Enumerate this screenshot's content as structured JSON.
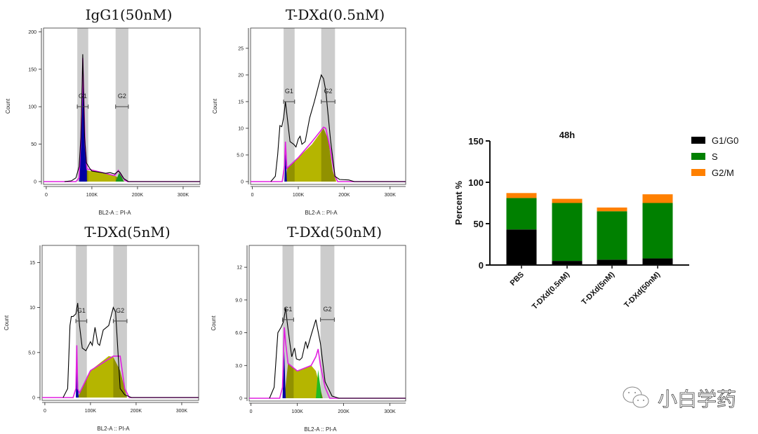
{
  "colors": {
    "black_line": "#000000",
    "fit": "#e020e0",
    "g1_fill": "#0000cc",
    "s_fill": "#b5b500",
    "g2_fill": "#22bb22",
    "gate_band": "#cccccc",
    "G1/G0": "#000000",
    "S": "#008000",
    "G2/M": "#ff8000"
  },
  "chart_data": [
    {
      "type": "histogram",
      "title": "IgG1(50nM)",
      "xlabel": "BL2-A :: PI-A",
      "ylabel": "Count",
      "xticks": [
        {
          "v": 0,
          "label": "0"
        },
        {
          "v": 100,
          "label": "100K"
        },
        {
          "v": 200,
          "label": "200K"
        },
        {
          "v": 300,
          "label": "300K"
        }
      ],
      "yticks": [
        {
          "v": 0,
          "label": "0"
        },
        {
          "v": 50,
          "label": "50"
        },
        {
          "v": 100,
          "label": "100"
        },
        {
          "v": 150,
          "label": "150"
        },
        {
          "v": 200,
          "label": "200"
        }
      ],
      "xlim": [
        -6,
        337
      ],
      "ylim": [
        0,
        205
      ],
      "gates": [
        {
          "label": "G1",
          "range": [
            68,
            92
          ],
          "level": 100
        },
        {
          "label": "G2",
          "range": [
            152,
            180
          ],
          "level": 100
        }
      ],
      "total": [
        [
          40,
          0
        ],
        [
          55,
          1
        ],
        [
          65,
          5
        ],
        [
          72,
          20
        ],
        [
          76,
          60
        ],
        [
          79,
          140
        ],
        [
          80,
          170
        ],
        [
          81,
          140
        ],
        [
          84,
          60
        ],
        [
          88,
          25
        ],
        [
          95,
          18
        ],
        [
          100,
          14
        ],
        [
          130,
          11
        ],
        [
          140,
          12
        ],
        [
          150,
          10
        ],
        [
          158,
          14
        ],
        [
          162,
          12
        ],
        [
          170,
          4
        ],
        [
          180,
          0
        ],
        [
          337,
          0
        ]
      ],
      "fit": [
        [
          -6,
          0
        ],
        [
          65,
          0
        ],
        [
          72,
          5
        ],
        [
          76,
          60
        ],
        [
          79,
          120
        ],
        [
          80,
          165
        ],
        [
          82,
          120
        ],
        [
          85,
          50
        ],
        [
          89,
          17
        ],
        [
          150,
          8
        ],
        [
          158,
          15
        ],
        [
          164,
          9
        ],
        [
          172,
          2
        ],
        [
          178,
          0
        ],
        [
          337,
          0
        ]
      ],
      "g1": [
        [
          72,
          0
        ],
        [
          76,
          50
        ],
        [
          80,
          165
        ],
        [
          84,
          60
        ],
        [
          89,
          15
        ],
        [
          89,
          0
        ]
      ],
      "s": [
        [
          72,
          0
        ],
        [
          90,
          15
        ],
        [
          150,
          8
        ],
        [
          172,
          0
        ]
      ],
      "g2": [
        [
          152,
          0
        ],
        [
          160,
          12
        ],
        [
          164,
          9
        ],
        [
          170,
          0
        ]
      ]
    },
    {
      "type": "histogram",
      "title": "T-DXd(0.5nM)",
      "xlabel": "BL2-A :: PI-A",
      "ylabel": "Count",
      "xticks": [
        {
          "v": 0,
          "label": "0"
        },
        {
          "v": 100,
          "label": "100K"
        },
        {
          "v": 200,
          "label": "200K"
        },
        {
          "v": 300,
          "label": "300K"
        }
      ],
      "yticks": [
        {
          "v": 0,
          "label": "0"
        },
        {
          "v": 5,
          "label": "5.0"
        },
        {
          "v": 10,
          "label": "10"
        },
        {
          "v": 15,
          "label": "15"
        },
        {
          "v": 20,
          "label": "20"
        },
        {
          "v": 25,
          "label": "25"
        }
      ],
      "xlim": [
        -4,
        334
      ],
      "ylim": [
        0,
        28.8
      ],
      "gates": [
        {
          "label": "G1",
          "range": [
            68,
            92
          ],
          "level": 15
        },
        {
          "label": "G2",
          "range": [
            150,
            180
          ],
          "level": 15
        }
      ],
      "total": [
        [
          40,
          0
        ],
        [
          50,
          1
        ],
        [
          55,
          5
        ],
        [
          60,
          10.5
        ],
        [
          64,
          10.3
        ],
        [
          68,
          12
        ],
        [
          72,
          15
        ],
        [
          76,
          12
        ],
        [
          82,
          7.5
        ],
        [
          90,
          7
        ],
        [
          95,
          6.5
        ],
        [
          100,
          8
        ],
        [
          104,
          8.5
        ],
        [
          108,
          7
        ],
        [
          115,
          7.5
        ],
        [
          125,
          12
        ],
        [
          135,
          15
        ],
        [
          150,
          20
        ],
        [
          155,
          19.3
        ],
        [
          160,
          17
        ],
        [
          170,
          8
        ],
        [
          180,
          1
        ],
        [
          190,
          0.4
        ],
        [
          210,
          0.3
        ],
        [
          222,
          0
        ],
        [
          334,
          0
        ]
      ],
      "fit": [
        [
          -4,
          0
        ],
        [
          65,
          0
        ],
        [
          70,
          3
        ],
        [
          72,
          7.5
        ],
        [
          75,
          2.5
        ],
        [
          100,
          4.5
        ],
        [
          130,
          7.5
        ],
        [
          155,
          10.2
        ],
        [
          160,
          10
        ],
        [
          170,
          6
        ],
        [
          180,
          1
        ],
        [
          186,
          0
        ],
        [
          334,
          0
        ]
      ],
      "g1": [
        [
          70,
          0
        ],
        [
          72,
          6
        ],
        [
          74,
          2.5
        ],
        [
          75,
          0
        ]
      ],
      "s": [
        [
          72,
          0
        ],
        [
          76,
          2.5
        ],
        [
          130,
          7
        ],
        [
          155,
          10
        ],
        [
          165,
          8
        ],
        [
          175,
          2
        ],
        [
          183,
          0
        ]
      ],
      "g2": []
    },
    {
      "type": "histogram",
      "title": "T-DXd(5nM)",
      "xlabel": "BL2-A :: PI-A",
      "ylabel": "Count",
      "xticks": [
        {
          "v": 0,
          "label": "0"
        },
        {
          "v": 100,
          "label": "100K"
        },
        {
          "v": 200,
          "label": "200K"
        },
        {
          "v": 300,
          "label": "300K"
        }
      ],
      "yticks": [
        {
          "v": 0,
          "label": "0"
        },
        {
          "v": 5,
          "label": "5.0"
        },
        {
          "v": 10,
          "label": "10"
        },
        {
          "v": 15,
          "label": "15"
        }
      ],
      "xlim": [
        -6,
        337
      ],
      "ylim": [
        0,
        16.9
      ],
      "gates": [
        {
          "label": "G1",
          "range": [
            68,
            92
          ],
          "level": 8.5
        },
        {
          "label": "G2",
          "range": [
            150,
            180
          ],
          "level": 8.5
        }
      ],
      "total": [
        [
          40,
          0
        ],
        [
          50,
          1
        ],
        [
          55,
          8
        ],
        [
          58,
          9
        ],
        [
          62,
          9
        ],
        [
          68,
          9.3
        ],
        [
          72,
          10.5
        ],
        [
          76,
          8
        ],
        [
          82,
          5.5
        ],
        [
          90,
          5.2
        ],
        [
          100,
          6.2
        ],
        [
          104,
          5.8
        ],
        [
          110,
          7.8
        ],
        [
          116,
          6
        ],
        [
          120,
          5.8
        ],
        [
          128,
          7.5
        ],
        [
          140,
          8
        ],
        [
          150,
          10
        ],
        [
          155,
          9.5
        ],
        [
          165,
          1
        ],
        [
          175,
          0.3
        ],
        [
          190,
          0
        ],
        [
          337,
          0
        ]
      ],
      "fit": [
        [
          -6,
          0
        ],
        [
          62,
          0
        ],
        [
          68,
          1
        ],
        [
          70,
          5.8
        ],
        [
          72,
          1
        ],
        [
          76,
          0.5
        ],
        [
          100,
          3
        ],
        [
          150,
          4.6
        ],
        [
          165,
          4.6
        ],
        [
          175,
          1
        ],
        [
          185,
          0
        ],
        [
          337,
          0
        ]
      ],
      "g1": [
        [
          68,
          0
        ],
        [
          70,
          5.8
        ],
        [
          73,
          1
        ],
        [
          74,
          0
        ]
      ],
      "s": [
        [
          72,
          0
        ],
        [
          80,
          1
        ],
        [
          100,
          3
        ],
        [
          140,
          4.6
        ],
        [
          150,
          4.5
        ],
        [
          165,
          3
        ],
        [
          180,
          0
        ]
      ],
      "g2": []
    },
    {
      "type": "histogram",
      "title": "T-DXd(50nM)",
      "xlabel": "BL2-A :: PI-A",
      "ylabel": "Count",
      "xticks": [
        {
          "v": 0,
          "label": "0"
        },
        {
          "v": 100,
          "label": "100K"
        },
        {
          "v": 200,
          "label": "200K"
        },
        {
          "v": 300,
          "label": "300K"
        }
      ],
      "yticks": [
        {
          "v": 0,
          "label": "0"
        },
        {
          "v": 3,
          "label": "3.0"
        },
        {
          "v": 6,
          "label": "6.0"
        },
        {
          "v": 9,
          "label": "9.0"
        },
        {
          "v": 12,
          "label": "12"
        }
      ],
      "xlim": [
        -4,
        334
      ],
      "ylim": [
        0,
        14
      ],
      "gates": [
        {
          "label": "G1",
          "range": [
            68,
            92
          ],
          "level": 7.2
        },
        {
          "label": "G2",
          "range": [
            150,
            180
          ],
          "level": 7.2
        }
      ],
      "total": [
        [
          40,
          0
        ],
        [
          50,
          1
        ],
        [
          58,
          6
        ],
        [
          65,
          6.5
        ],
        [
          70,
          7
        ],
        [
          75,
          8.3
        ],
        [
          78,
          7
        ],
        [
          84,
          5
        ],
        [
          88,
          3.8
        ],
        [
          94,
          4.6
        ],
        [
          98,
          3.6
        ],
        [
          105,
          3.5
        ],
        [
          110,
          3.7
        ],
        [
          118,
          5.2
        ],
        [
          122,
          4.6
        ],
        [
          130,
          5.8
        ],
        [
          140,
          7.2
        ],
        [
          150,
          5
        ],
        [
          160,
          1.5
        ],
        [
          175,
          0.2
        ],
        [
          190,
          0
        ],
        [
          334,
          0
        ]
      ],
      "fit": [
        [
          -4,
          0
        ],
        [
          62,
          0
        ],
        [
          68,
          1
        ],
        [
          72,
          6.5
        ],
        [
          75,
          5
        ],
        [
          80,
          3.2
        ],
        [
          100,
          2.5
        ],
        [
          130,
          3
        ],
        [
          140,
          3.8
        ],
        [
          145,
          4.5
        ],
        [
          150,
          3
        ],
        [
          160,
          1
        ],
        [
          170,
          0
        ],
        [
          334,
          0
        ]
      ],
      "g1": [
        [
          68,
          0
        ],
        [
          72,
          4.3
        ],
        [
          74,
          1
        ],
        [
          75,
          0
        ]
      ],
      "s": [
        [
          72,
          0
        ],
        [
          80,
          3.2
        ],
        [
          100,
          2.5
        ],
        [
          130,
          3
        ],
        [
          140,
          2.5
        ],
        [
          155,
          0
        ]
      ],
      "g2": [
        [
          140,
          0
        ],
        [
          145,
          2.6
        ],
        [
          150,
          1
        ],
        [
          153,
          0
        ]
      ]
    },
    {
      "type": "bar",
      "stacked": true,
      "title": "48h",
      "ylabel": "Percent %",
      "ylim": [
        0,
        150
      ],
      "yticks": [
        0,
        50,
        100,
        150
      ],
      "categories": [
        "PBS",
        "T-DXd(0.5nM)",
        "T-DXd(5nM)",
        "T-DXd(50nM)"
      ],
      "series": [
        {
          "name": "G1/G0",
          "values": [
            43,
            5,
            6.5,
            8
          ]
        },
        {
          "name": "S",
          "values": [
            38,
            70,
            58.5,
            67
          ]
        },
        {
          "name": "G2/M",
          "values": [
            6,
            5,
            4.5,
            10.5
          ]
        }
      ],
      "legend": "top-right"
    }
  ],
  "watermark": {
    "text": "小白学药"
  }
}
